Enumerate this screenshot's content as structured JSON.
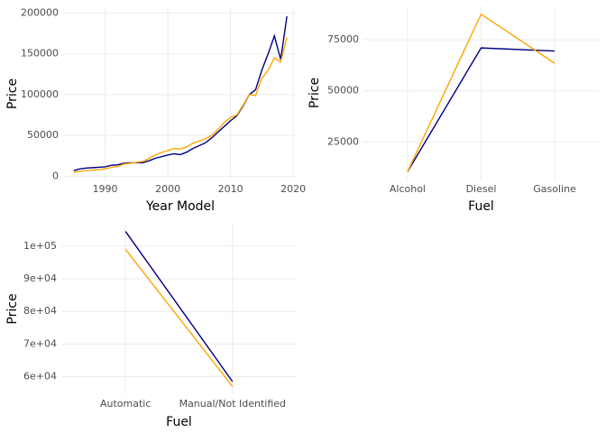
{
  "chart_data": [
    {
      "type": "line",
      "x_label": "Year Model",
      "y_label": "Price",
      "x": [
        1985,
        1986,
        1987,
        1988,
        1989,
        1990,
        1991,
        1992,
        1993,
        1994,
        1995,
        1996,
        1997,
        1998,
        1999,
        2000,
        2001,
        2002,
        2003,
        2004,
        2005,
        2006,
        2007,
        2008,
        2009,
        2010,
        2011,
        2012,
        2013,
        2014,
        2015,
        2016,
        2017,
        2018,
        2019
      ],
      "series": [
        {
          "color": "#000080",
          "values": [
            7000,
            9000,
            10000,
            10500,
            11000,
            11500,
            13500,
            14000,
            16000,
            16500,
            16500,
            16500,
            19000,
            22000,
            24000,
            26000,
            27500,
            26500,
            29500,
            34000,
            37500,
            41000,
            47000,
            54000,
            61000,
            68000,
            74000,
            86000,
            100000,
            106000,
            130000,
            150000,
            172000,
            143000,
            196000
          ]
        },
        {
          "color": "#ffa500",
          "values": [
            5000,
            6000,
            7000,
            7500,
            8000,
            9000,
            11000,
            12000,
            15000,
            16000,
            17000,
            18000,
            22000,
            26000,
            29000,
            31500,
            34000,
            33500,
            36000,
            40500,
            43000,
            46000,
            50000,
            57000,
            66000,
            72000,
            75000,
            87000,
            100000,
            99000,
            120000,
            130000,
            145000,
            140000,
            170000
          ]
        }
      ],
      "xlim": [
        1983.3,
        2020.7
      ],
      "xticks": [
        1990,
        2000,
        2010,
        2020
      ],
      "ylim": [
        -4000,
        206000
      ],
      "yticks": [
        0,
        50000,
        100000,
        150000,
        200000
      ],
      "grid": true
    },
    {
      "type": "line",
      "x_label": "Fuel",
      "y_label": "Price",
      "categories": [
        "Alcohol",
        "Diesel",
        "Gasoline"
      ],
      "series": [
        {
          "color": "#000080",
          "values": [
            10500,
            71000,
            69500
          ]
        },
        {
          "color": "#ffa500",
          "values": [
            10500,
            87500,
            63500
          ]
        }
      ],
      "ylim": [
        6650,
        91350
      ],
      "yticks": [
        25000,
        50000,
        75000
      ],
      "grid": true
    },
    {
      "type": "line",
      "x_label": "Fuel",
      "y_label": "Price",
      "categories": [
        "Automatic",
        "Manual/Not Identified"
      ],
      "series": [
        {
          "color": "#000080",
          "values": [
            104500,
            58500
          ]
        },
        {
          "color": "#ffa500",
          "values": [
            99000,
            57000
          ]
        }
      ],
      "ylim": [
        54625,
        106875
      ],
      "yticks": [
        {
          "value": 60000,
          "label": "6e+04"
        },
        {
          "value": 70000,
          "label": "7e+04"
        },
        {
          "value": 80000,
          "label": "8e+04"
        },
        {
          "value": 90000,
          "label": "9e+04"
        },
        {
          "value": 100000,
          "label": "1e+05"
        }
      ],
      "grid": true
    }
  ]
}
